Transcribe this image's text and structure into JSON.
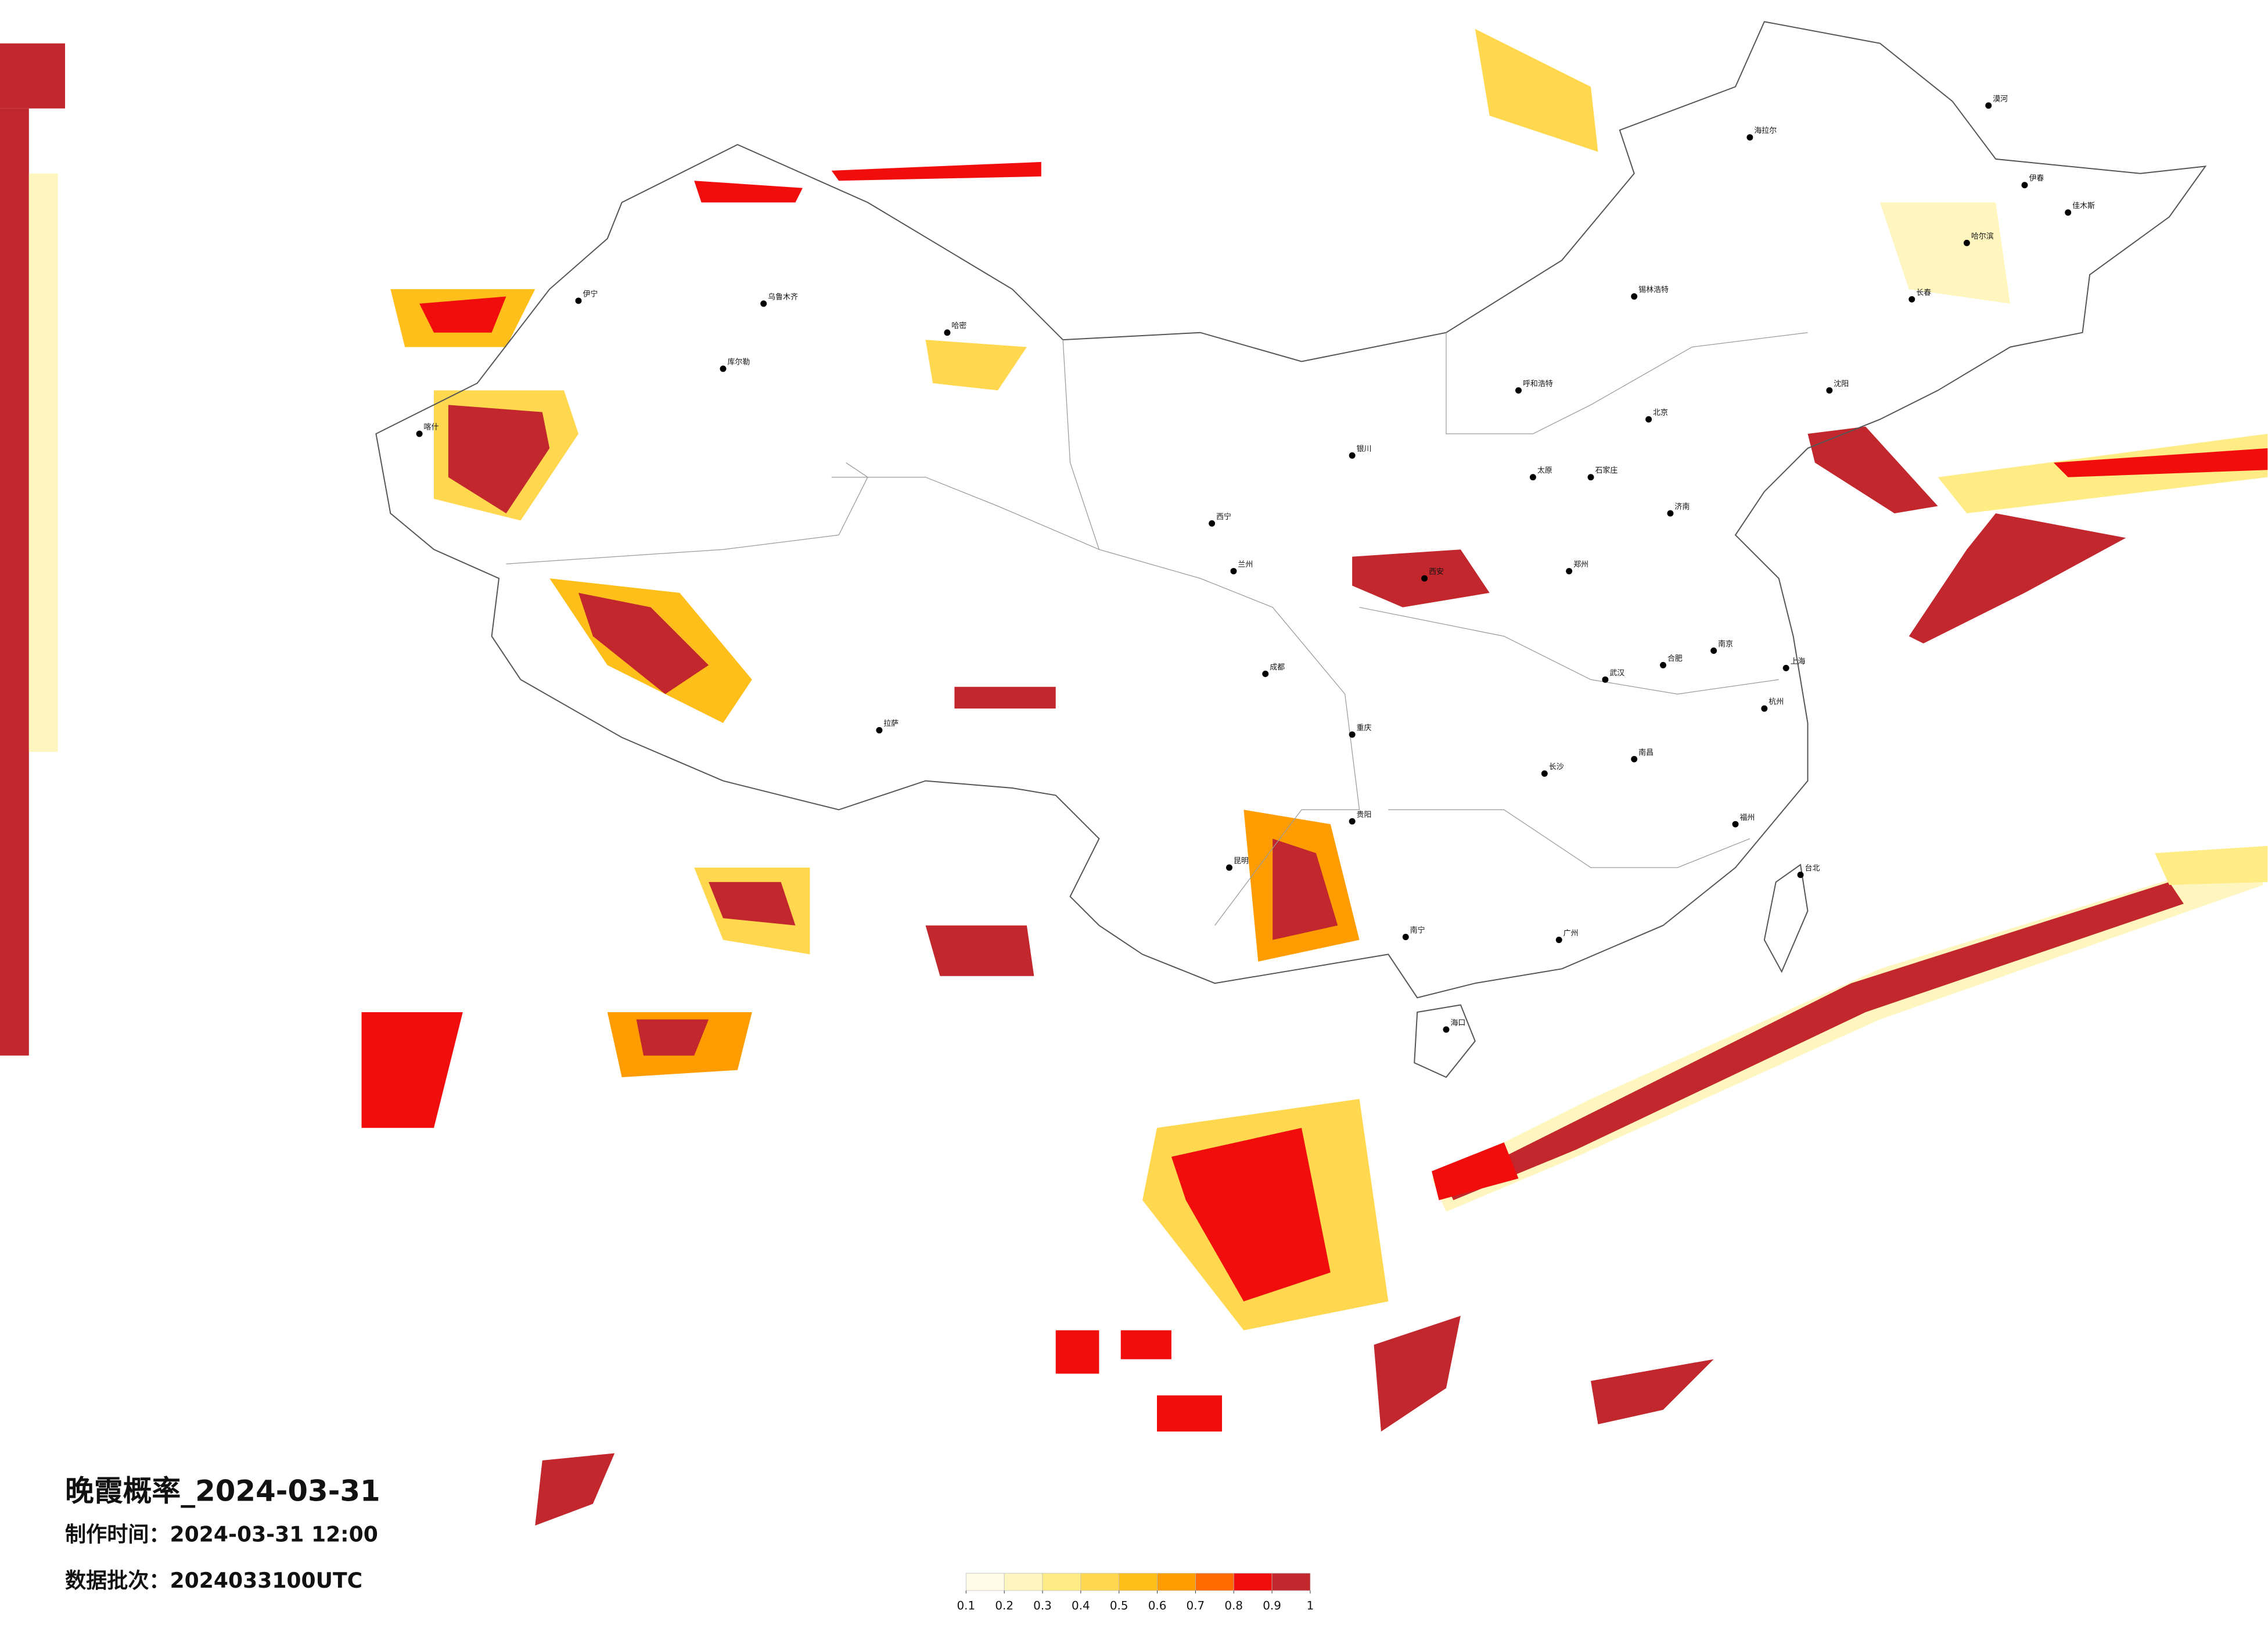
{
  "title": "晚霞概率_2024-03-31",
  "made_time": "制作时间：2024-03-31 12:00",
  "data_batch": "数据批次：2024033100UTC",
  "legend": {
    "ticks": [
      0.1,
      0.2,
      0.3,
      0.4,
      0.5,
      0.6,
      0.7,
      0.8,
      0.9,
      1
    ],
    "colors": [
      "#fffce8",
      "#fff6bf",
      "#ffec85",
      "#ffd84f",
      "#ffbf1a",
      "#ff9d00",
      "#ff6a00",
      "#f20d0d",
      "#c1272d"
    ]
  },
  "cities": [
    "北京",
    "呼和浩特",
    "哈尔滨",
    "长春",
    "沈阳",
    "漠河",
    "海拉尔",
    "伊春",
    "佳木斯",
    "乌鲁木齐",
    "伊宁",
    "喀什",
    "哈密",
    "拉萨",
    "西宁",
    "兰州",
    "银川",
    "西安",
    "太原",
    "石家庄",
    "郑州",
    "济南",
    "成都",
    "重庆",
    "昆明",
    "贵阳",
    "南宁",
    "海口",
    "广州",
    "长沙",
    "武汉",
    "南昌",
    "合肥",
    "南京",
    "杭州",
    "上海",
    "福州",
    "台北",
    "锡林浩特",
    "库尔勒"
  ]
}
